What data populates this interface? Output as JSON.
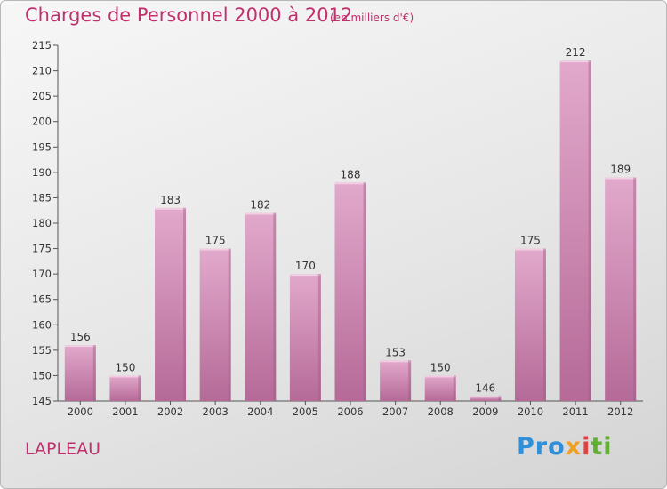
{
  "header": {
    "title": "Charges de Personnel 2000 à 2012",
    "subtitle": "(en milliers d'€)"
  },
  "footer": {
    "place": "LAPLEAU",
    "logo": [
      "Pro",
      "x",
      "i",
      "ti"
    ]
  },
  "colors": {
    "bar": "#d68fbb",
    "bar_light": "#e6b3d2",
    "bar_dark": "#b76a98",
    "text_accent": "#c0306c"
  },
  "chart_data": {
    "type": "bar",
    "categories": [
      "2000",
      "2001",
      "2002",
      "2003",
      "2004",
      "2005",
      "2006",
      "2007",
      "2008",
      "2009",
      "2010",
      "2011",
      "2012"
    ],
    "values": [
      156,
      150,
      183,
      175,
      182,
      170,
      188,
      153,
      150,
      146,
      175,
      212,
      189
    ],
    "ylim": [
      145,
      215
    ],
    "yticks": [
      145,
      150,
      155,
      160,
      165,
      170,
      175,
      180,
      185,
      190,
      195,
      200,
      205,
      210,
      215
    ],
    "grid": false,
    "data_labels": true
  }
}
